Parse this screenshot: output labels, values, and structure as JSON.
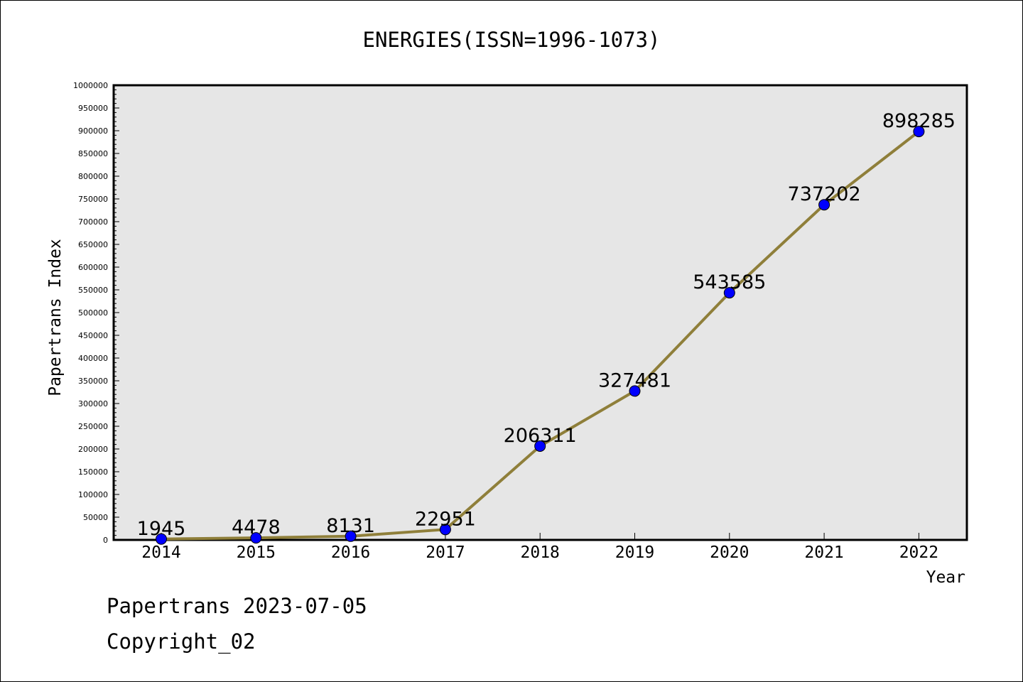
{
  "chart_data": {
    "type": "line",
    "title": "ENERGIES(ISSN=1996-1073)",
    "xlabel": "Year",
    "ylabel": "Papertrans Index",
    "categories": [
      "2014",
      "2015",
      "2016",
      "2017",
      "2018",
      "2019",
      "2020",
      "2021",
      "2022"
    ],
    "series": [
      {
        "values": [
          1945,
          4478,
          8131,
          22951,
          206311,
          327481,
          543585,
          737202,
          898285
        ]
      }
    ],
    "data_labels": [
      "1945",
      "4478",
      "8131",
      "22951",
      "206311",
      "327481",
      "543585",
      "737202",
      "898285"
    ],
    "ylim": [
      0,
      1000000
    ],
    "y_major_step": 50000,
    "y_tick_labels": [
      "0",
      "50000",
      "100000",
      "150000",
      "200000",
      "250000",
      "300000",
      "350000",
      "400000",
      "450000",
      "500000",
      "550000",
      "600000",
      "650000",
      "700000",
      "750000",
      "800000",
      "850000",
      "900000",
      "950000",
      "1000000"
    ],
    "grid": false,
    "legend": "none",
    "colors": {
      "line": "#8f7f3a",
      "marker_fill": "#0000ff",
      "plot_background": "#e6e6e6",
      "axis": "#000000"
    }
  },
  "footer": {
    "line1": "Papertrans 2023-07-05",
    "line2": "Copyright_02"
  }
}
